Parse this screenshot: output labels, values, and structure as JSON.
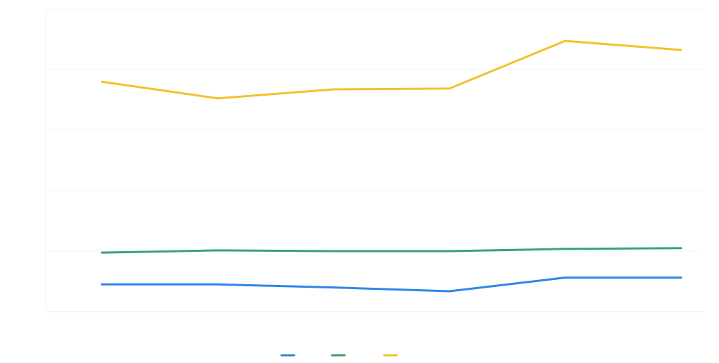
{
  "chart_data": {
    "type": "line",
    "title": "",
    "xlabel": "",
    "ylabel": "",
    "categories": [
      "",
      "",
      "",
      "",
      "",
      ""
    ],
    "ylim": [
      0,
      2000
    ],
    "yticks": [
      "",
      "",
      "",
      "",
      "",
      ""
    ],
    "grid": true,
    "legend_position": "bottom",
    "series": [
      {
        "name": "",
        "color": "#2e86e8",
        "values": [
          180,
          180,
          160,
          135,
          225,
          225
        ]
      },
      {
        "name": "",
        "color": "#3aa378",
        "values": [
          390,
          405,
          400,
          400,
          415,
          420
        ]
      },
      {
        "name": "",
        "color": "#f2c12e",
        "values": [
          1520,
          1410,
          1470,
          1475,
          1790,
          1730
        ]
      }
    ]
  }
}
